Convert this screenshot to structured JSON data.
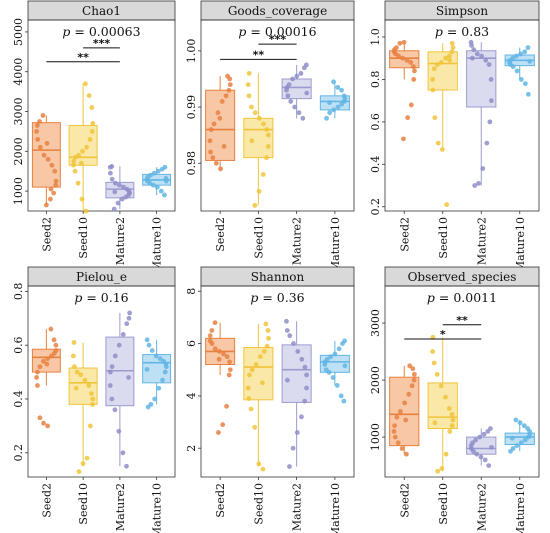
{
  "categories": [
    "Seed2",
    "Seed10",
    "Mature2",
    "Mature10"
  ],
  "colors": {
    "Seed2": {
      "stroke": "#e8803f",
      "fill": "#f4b488",
      "point": "#e8803f"
    },
    "Seed10": {
      "stroke": "#f0c43a",
      "fill": "#f8e08c",
      "point": "#f0c43a"
    },
    "Mature2": {
      "stroke": "#9b9bd0",
      "fill": "#cfcfeb",
      "point": "#8e8ec8"
    },
    "Mature10": {
      "stroke": "#62b5e4",
      "fill": "#a8d6f1",
      "point": "#62b5e4"
    },
    "strip_bg": "#d9d9d9"
  },
  "chart_data": [
    {
      "type": "box",
      "title": "Chao1",
      "p_label": "p",
      "p_value": "= 0.00063",
      "ylim": [
        500,
        5300
      ],
      "yticks": [
        1000,
        2000,
        3000,
        4000,
        5000
      ],
      "tick_labels": [
        "1000",
        "2000",
        "3000",
        "4000",
        "5000"
      ],
      "boxes": [
        {
          "category": "Seed2",
          "whisker_low": 650,
          "q1": 1100,
          "median": 2030,
          "q3": 2720,
          "whisker_high": 2900,
          "points": [
            650,
            800,
            950,
            1150,
            1250,
            1500,
            1650,
            1800,
            1900,
            2100,
            2300,
            2500,
            2650,
            2750,
            2900,
            2200,
            1050
          ]
        },
        {
          "category": "Seed10",
          "whisker_low": 500,
          "q1": 1650,
          "median": 1850,
          "q3": 2650,
          "whisker_high": 3700,
          "points": [
            500,
            800,
            1200,
            1500,
            1650,
            1750,
            1850,
            1900,
            2000,
            2100,
            2300,
            2500,
            2700,
            3100,
            3400,
            3700,
            1700
          ]
        },
        {
          "category": "Mature2",
          "whisker_low": 550,
          "q1": 830,
          "median": 1050,
          "q3": 1220,
          "whisker_high": 1620,
          "points": [
            550,
            700,
            800,
            850,
            900,
            950,
            1000,
            1050,
            1100,
            1150,
            1200,
            1300,
            1450,
            1600,
            1620,
            980
          ]
        },
        {
          "category": "Mature10",
          "whisker_low": 900,
          "q1": 1150,
          "median": 1280,
          "q3": 1420,
          "whisker_high": 1600,
          "points": [
            900,
            1000,
            1100,
            1150,
            1200,
            1250,
            1300,
            1350,
            1400,
            1450,
            1500,
            1550,
            1600,
            1250,
            1320
          ]
        }
      ],
      "brackets": [
        {
          "from": "Seed10",
          "to": "Mature2",
          "label": "***",
          "y": 4600
        },
        {
          "from": "Seed2",
          "to": "Mature2",
          "label": "**",
          "y": 4250
        }
      ]
    },
    {
      "type": "box",
      "title": "Goods_coverage",
      "p_label": "p",
      "p_value": "= 0.00016",
      "ylim": [
        0.9715,
        1.0055
      ],
      "yticks": [
        0.98,
        0.99,
        1.0
      ],
      "tick_labels": [
        "0.98",
        "0.99",
        "1.00"
      ],
      "boxes": [
        {
          "category": "Seed2",
          "whisker_low": 0.979,
          "q1": 0.9805,
          "median": 0.986,
          "q3": 0.993,
          "whisker_high": 0.9955,
          "points": [
            0.979,
            0.98,
            0.981,
            0.982,
            0.984,
            0.986,
            0.987,
            0.989,
            0.991,
            0.992,
            0.993,
            0.994,
            0.995,
            0.9955,
            0.983,
            0.988
          ]
        },
        {
          "category": "Seed10",
          "whisker_low": 0.9725,
          "q1": 0.981,
          "median": 0.986,
          "q3": 0.988,
          "whisker_high": 0.996,
          "points": [
            0.9725,
            0.975,
            0.978,
            0.981,
            0.983,
            0.985,
            0.986,
            0.987,
            0.988,
            0.989,
            0.99,
            0.992,
            0.994,
            0.996,
            0.984
          ]
        },
        {
          "category": "Mature2",
          "whisker_low": 0.988,
          "q1": 0.9915,
          "median": 0.9935,
          "q3": 0.995,
          "whisker_high": 0.9975,
          "points": [
            0.988,
            0.989,
            0.99,
            0.991,
            0.992,
            0.993,
            0.9935,
            0.994,
            0.995,
            0.9955,
            0.996,
            0.997,
            0.9975,
            0.9925
          ]
        },
        {
          "category": "Mature10",
          "whisker_low": 0.988,
          "q1": 0.9895,
          "median": 0.991,
          "q3": 0.992,
          "whisker_high": 0.9945,
          "points": [
            0.988,
            0.989,
            0.9895,
            0.99,
            0.9905,
            0.991,
            0.9915,
            0.992,
            0.993,
            0.9935,
            0.9945,
            0.9908
          ]
        }
      ],
      "brackets": [
        {
          "from": "Seed10",
          "to": "Mature2",
          "label": "***",
          "y": 1.0012
        },
        {
          "from": "Seed2",
          "to": "Mature2",
          "label": "**",
          "y": 0.9985
        }
      ]
    },
    {
      "type": "box",
      "title": "Simpson",
      "p_label": "p",
      "p_value": "= 0.83",
      "ylim": [
        0.18,
        1.08
      ],
      "yticks": [
        0.2,
        0.4,
        0.6,
        0.8,
        1.0
      ],
      "tick_labels": [
        "0.2",
        "0.4",
        "0.6",
        "0.8",
        "1.0"
      ],
      "boxes": [
        {
          "category": "Seed2",
          "whisker_low": 0.8,
          "q1": 0.855,
          "median": 0.9,
          "q3": 0.935,
          "whisker_high": 0.975,
          "points": [
            0.52,
            0.62,
            0.68,
            0.8,
            0.84,
            0.86,
            0.88,
            0.89,
            0.9,
            0.91,
            0.92,
            0.93,
            0.94,
            0.95,
            0.97,
            0.975
          ]
        },
        {
          "category": "Seed10",
          "whisker_low": 0.48,
          "q1": 0.75,
          "median": 0.875,
          "q3": 0.93,
          "whisker_high": 0.97,
          "points": [
            0.21,
            0.47,
            0.5,
            0.62,
            0.75,
            0.8,
            0.85,
            0.87,
            0.88,
            0.9,
            0.91,
            0.93,
            0.95,
            0.97,
            0.89
          ]
        },
        {
          "category": "Mature2",
          "whisker_low": 0.3,
          "q1": 0.67,
          "median": 0.9,
          "q3": 0.935,
          "whisker_high": 0.975,
          "points": [
            0.3,
            0.31,
            0.38,
            0.5,
            0.6,
            0.7,
            0.8,
            0.87,
            0.89,
            0.91,
            0.92,
            0.94,
            0.96,
            0.975,
            0.9
          ]
        },
        {
          "category": "Mature10",
          "whisker_low": 0.8,
          "q1": 0.865,
          "median": 0.89,
          "q3": 0.915,
          "whisker_high": 0.95,
          "points": [
            0.73,
            0.78,
            0.8,
            0.84,
            0.86,
            0.87,
            0.88,
            0.89,
            0.9,
            0.91,
            0.92,
            0.93,
            0.95,
            0.885
          ]
        }
      ],
      "brackets": []
    },
    {
      "type": "box",
      "title": "Pielou_e",
      "p_label": "p",
      "p_value": "= 0.16",
      "ylim": [
        0.11,
        0.82
      ],
      "yticks": [
        0.2,
        0.4,
        0.6,
        0.8
      ],
      "tick_labels": [
        "0.2",
        "0.4",
        "0.6",
        "0.8"
      ],
      "boxes": [
        {
          "category": "Seed2",
          "whisker_low": 0.45,
          "q1": 0.5,
          "median": 0.555,
          "q3": 0.585,
          "whisker_high": 0.66,
          "points": [
            0.3,
            0.31,
            0.33,
            0.45,
            0.48,
            0.5,
            0.52,
            0.54,
            0.55,
            0.56,
            0.57,
            0.58,
            0.6,
            0.62,
            0.66,
            0.53
          ]
        },
        {
          "category": "Seed10",
          "whisker_low": 0.15,
          "q1": 0.38,
          "median": 0.46,
          "q3": 0.515,
          "whisker_high": 0.61,
          "points": [
            0.13,
            0.16,
            0.18,
            0.3,
            0.38,
            0.4,
            0.42,
            0.45,
            0.47,
            0.49,
            0.5,
            0.52,
            0.56,
            0.61,
            0.44
          ]
        },
        {
          "category": "Mature2",
          "whisker_low": 0.15,
          "q1": 0.375,
          "median": 0.505,
          "q3": 0.63,
          "whisker_high": 0.72,
          "points": [
            0.15,
            0.2,
            0.28,
            0.36,
            0.4,
            0.45,
            0.5,
            0.52,
            0.56,
            0.6,
            0.64,
            0.68,
            0.7,
            0.72,
            0.48
          ]
        },
        {
          "category": "Mature10",
          "whisker_low": 0.38,
          "q1": 0.46,
          "median": 0.535,
          "q3": 0.565,
          "whisker_high": 0.62,
          "points": [
            0.37,
            0.38,
            0.4,
            0.44,
            0.47,
            0.5,
            0.52,
            0.53,
            0.54,
            0.55,
            0.56,
            0.58,
            0.6,
            0.62,
            0.51
          ]
        }
      ],
      "brackets": []
    },
    {
      "type": "box",
      "title": "Shannon",
      "p_label": "p",
      "p_value": "= 0.36",
      "ylim": [
        0.9,
        8.2
      ],
      "yticks": [
        2,
        4,
        6,
        8
      ],
      "tick_labels": [
        "2",
        "4",
        "6",
        "8"
      ],
      "boxes": [
        {
          "category": "Seed2",
          "whisker_low": 4.8,
          "q1": 5.2,
          "median": 5.7,
          "q3": 6.2,
          "whisker_high": 6.8,
          "points": [
            2.6,
            2.9,
            3.6,
            4.8,
            5.0,
            5.3,
            5.5,
            5.6,
            5.7,
            5.8,
            6.0,
            6.1,
            6.3,
            6.5,
            6.8,
            5.4
          ]
        },
        {
          "category": "Seed10",
          "whisker_low": 1.3,
          "q1": 3.85,
          "median": 5.1,
          "q3": 5.85,
          "whisker_high": 6.75,
          "points": [
            1.2,
            1.4,
            2.8,
            3.5,
            3.9,
            4.3,
            4.8,
            5.0,
            5.2,
            5.5,
            5.7,
            5.9,
            6.2,
            6.5,
            6.75,
            4.5
          ]
        },
        {
          "category": "Mature2",
          "whisker_low": 1.3,
          "q1": 3.75,
          "median": 5.0,
          "q3": 5.95,
          "whisker_high": 6.85,
          "points": [
            1.3,
            2.0,
            2.6,
            3.2,
            3.8,
            4.3,
            4.8,
            5.1,
            5.4,
            5.7,
            6.0,
            6.3,
            6.5,
            6.85,
            4.6
          ]
        },
        {
          "category": "Mature10",
          "whisker_low": 4.4,
          "q1": 4.9,
          "median": 5.3,
          "q3": 5.55,
          "whisker_high": 6.1,
          "points": [
            3.8,
            4.0,
            4.4,
            4.7,
            4.9,
            5.0,
            5.2,
            5.3,
            5.4,
            5.5,
            5.6,
            5.8,
            6.0,
            6.1,
            5.15
          ]
        }
      ],
      "brackets": []
    },
    {
      "type": "box",
      "title": "Observed_species",
      "p_label": "p",
      "p_value": "= 0.0011",
      "ylim": [
        300,
        3650
      ],
      "yticks": [
        1000,
        2000,
        3000
      ],
      "tick_labels": [
        "1000",
        "2000",
        "3000"
      ],
      "boxes": [
        {
          "category": "Seed2",
          "whisker_low": 700,
          "q1": 850,
          "median": 1400,
          "q3": 2050,
          "whisker_high": 2250,
          "points": [
            700,
            800,
            900,
            1000,
            1100,
            1200,
            1350,
            1450,
            1600,
            1750,
            1900,
            2000,
            2100,
            2200,
            2250,
            1300
          ]
        },
        {
          "category": "Seed10",
          "whisker_low": 400,
          "q1": 1150,
          "median": 1350,
          "q3": 1950,
          "whisker_high": 2750,
          "points": [
            400,
            450,
            700,
            1100,
            1200,
            1300,
            1400,
            1500,
            1700,
            1900,
            2100,
            2300,
            2500,
            2750,
            1250
          ]
        },
        {
          "category": "Mature2",
          "whisker_low": 500,
          "q1": 700,
          "median": 800,
          "q3": 1000,
          "whisker_high": 1150,
          "points": [
            500,
            600,
            650,
            700,
            750,
            800,
            850,
            900,
            950,
            1000,
            1050,
            1100,
            1150,
            820
          ]
        },
        {
          "category": "Mature10",
          "whisker_low": 750,
          "q1": 870,
          "median": 1000,
          "q3": 1070,
          "whisker_high": 1300,
          "points": [
            750,
            800,
            850,
            900,
            950,
            1000,
            1050,
            1100,
            1150,
            1200,
            1250,
            1300,
            980
          ]
        }
      ],
      "brackets": [
        {
          "from": "Seed10",
          "to": "Mature2",
          "label": "**",
          "y": 2970
        },
        {
          "from": "Seed2",
          "to": "Mature2",
          "label": "*",
          "y": 2720
        }
      ]
    }
  ]
}
